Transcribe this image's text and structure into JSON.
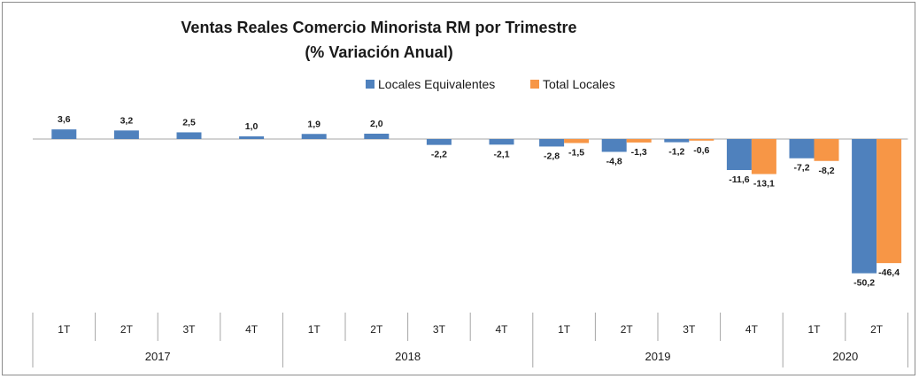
{
  "chart_data": {
    "type": "bar",
    "title": "Ventas Reales Comercio Minorista RM por Trimestre",
    "subtitle": "(% Variación Anual)",
    "legend_position": "top-right",
    "grid": false,
    "ylim": [
      -52,
      5
    ],
    "categories": [
      "1T",
      "2T",
      "3T",
      "4T",
      "1T",
      "2T",
      "3T",
      "4T",
      "1T",
      "2T",
      "3T",
      "4T",
      "1T",
      "2T"
    ],
    "year_groups": [
      {
        "label": "2017",
        "count": 4
      },
      {
        "label": "2018",
        "count": 4
      },
      {
        "label": "2019",
        "count": 4
      },
      {
        "label": "2020",
        "count": 2
      }
    ],
    "series": [
      {
        "name": "Locales Equivalentes",
        "color": "#4f81bd",
        "values": [
          3.6,
          3.2,
          2.5,
          1.0,
          1.9,
          2.0,
          -2.2,
          -2.1,
          -2.8,
          -4.8,
          -1.2,
          -11.6,
          -7.2,
          -50.2
        ],
        "labels": [
          "3,6",
          "3,2",
          "2,5",
          "1,0",
          "1,9",
          "2,0",
          "-2,2",
          "-2,1",
          "-2,8",
          "-4,8",
          "-1,2",
          "-11,6",
          "-7,2",
          "-50,2"
        ]
      },
      {
        "name": "Total Locales",
        "color": "#f79646",
        "values": [
          null,
          null,
          null,
          null,
          null,
          null,
          null,
          null,
          -1.5,
          -1.3,
          -0.6,
          -13.1,
          -8.2,
          -46.4
        ],
        "labels": [
          "",
          "",
          "",
          "",
          "",
          "",
          "",
          "",
          "-1,5",
          "-1,3",
          "-0,6",
          "-13,1",
          "-8,2",
          "-46,4"
        ]
      }
    ]
  }
}
